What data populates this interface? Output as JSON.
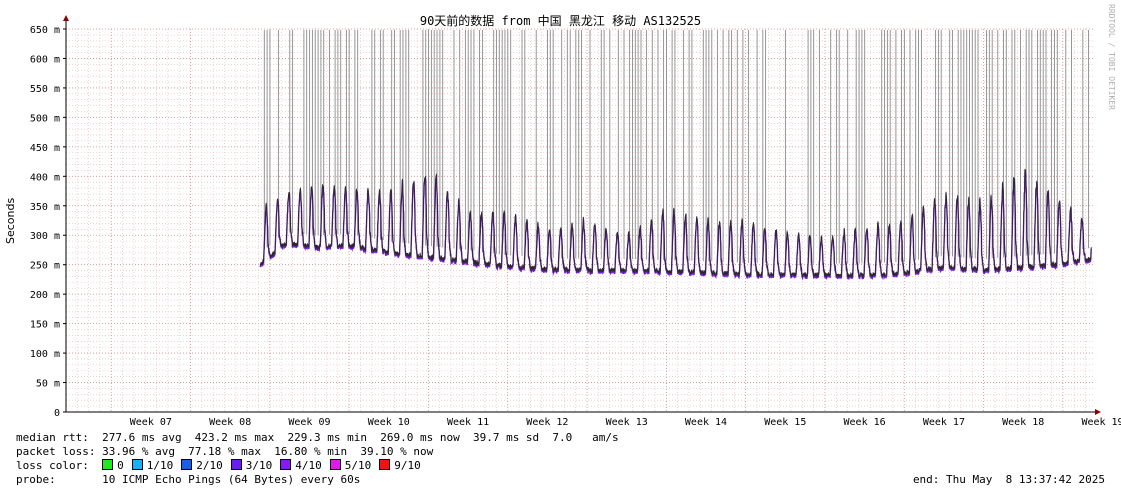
{
  "chart_data": {
    "type": "line",
    "title": "90天前的数据 from 中国 黑龙江 移动 AS132525",
    "ylabel": "Seconds",
    "watermark": "RRDTOOL / TOBI OETIKER",
    "y_axis": {
      "unit_suffix": "m",
      "ylim_ms": [
        0,
        650
      ],
      "ticks": [
        "0",
        "50 m",
        "100 m",
        "150 m",
        "200 m",
        "250 m",
        "300 m",
        "350 m",
        "400 m",
        "450 m",
        "500 m",
        "550 m",
        "600 m",
        "650 m"
      ],
      "tick_values_ms": [
        0,
        50,
        100,
        150,
        200,
        250,
        300,
        350,
        400,
        450,
        500,
        550,
        600,
        650
      ]
    },
    "x_axis": {
      "ticks": [
        "Week 07",
        "Week 08",
        "Week 09",
        "Week 10",
        "Week 11",
        "Week 12",
        "Week 13",
        "Week 14",
        "Week 15",
        "Week 16",
        "Week 17",
        "Week 18",
        "Week 19"
      ],
      "range_weeks": [
        6.43,
        19.38
      ],
      "data_start_week": 8.88
    },
    "grid": true,
    "colors": {
      "grid_minor": "#e6b8b8",
      "grid_major": "#d48a8a",
      "median_line": "#2a2a2a",
      "loss_series": "#7a1fd6",
      "smoke": "#8c8c8c",
      "axis": "#000000",
      "arrow": "#8b0000"
    },
    "series": [
      {
        "name": "median rtt",
        "daily_baseline_ms": [
          {
            "week": 8.88,
            "low_ms": 250,
            "high_ms": 350
          },
          {
            "week": 9.2,
            "low_ms": 285,
            "high_ms": 380
          },
          {
            "week": 9.6,
            "low_ms": 280,
            "high_ms": 395
          },
          {
            "week": 10.0,
            "low_ms": 282,
            "high_ms": 385
          },
          {
            "week": 10.5,
            "low_ms": 270,
            "high_ms": 380
          },
          {
            "week": 11.0,
            "low_ms": 262,
            "high_ms": 420
          },
          {
            "week": 11.5,
            "low_ms": 255,
            "high_ms": 345
          },
          {
            "week": 12.0,
            "low_ms": 246,
            "high_ms": 345
          },
          {
            "week": 12.5,
            "low_ms": 242,
            "high_ms": 315
          },
          {
            "week": 13.0,
            "low_ms": 240,
            "high_ms": 330
          },
          {
            "week": 13.5,
            "low_ms": 240,
            "high_ms": 305
          },
          {
            "week": 14.0,
            "low_ms": 238,
            "high_ms": 350
          },
          {
            "week": 14.5,
            "low_ms": 236,
            "high_ms": 330
          },
          {
            "week": 15.0,
            "low_ms": 233,
            "high_ms": 330
          },
          {
            "week": 15.5,
            "low_ms": 233,
            "high_ms": 310
          },
          {
            "week": 16.0,
            "low_ms": 232,
            "high_ms": 300
          },
          {
            "week": 16.5,
            "low_ms": 232,
            "high_ms": 320
          },
          {
            "week": 17.0,
            "low_ms": 235,
            "high_ms": 330
          },
          {
            "week": 17.5,
            "low_ms": 245,
            "high_ms": 380
          },
          {
            "week": 18.0,
            "low_ms": 240,
            "high_ms": 360
          },
          {
            "week": 18.5,
            "low_ms": 245,
            "high_ms": 420
          },
          {
            "week": 19.0,
            "low_ms": 250,
            "high_ms": 360
          },
          {
            "week": 19.3,
            "low_ms": 258,
            "high_ms": 330
          }
        ]
      }
    ]
  },
  "stats": {
    "median_rtt": "median rtt:  277.6 ms avg  423.2 ms max  229.3 ms min  269.0 ms now  39.7 ms sd  7.0   am/s",
    "packet_loss": "packet loss: 33.96 % avg  77.18 % max  16.80 % min  39.10 % now",
    "loss_color_label": "loss color:",
    "loss_colors": [
      {
        "label": "0",
        "color": "#26e426"
      },
      {
        "label": "1/10",
        "color": "#1ab1f0"
      },
      {
        "label": "2/10",
        "color": "#1560e6"
      },
      {
        "label": "3/10",
        "color": "#6a1ef0"
      },
      {
        "label": "4/10",
        "color": "#8a1ae8"
      },
      {
        "label": "5/10",
        "color": "#e01aef"
      },
      {
        "label": "9/10",
        "color": "#ef1414"
      }
    ],
    "probe": "probe:       10 ICMP Echo Pings (64 Bytes) every 60s",
    "end": "end: Thu May  8 13:37:42 2025"
  }
}
